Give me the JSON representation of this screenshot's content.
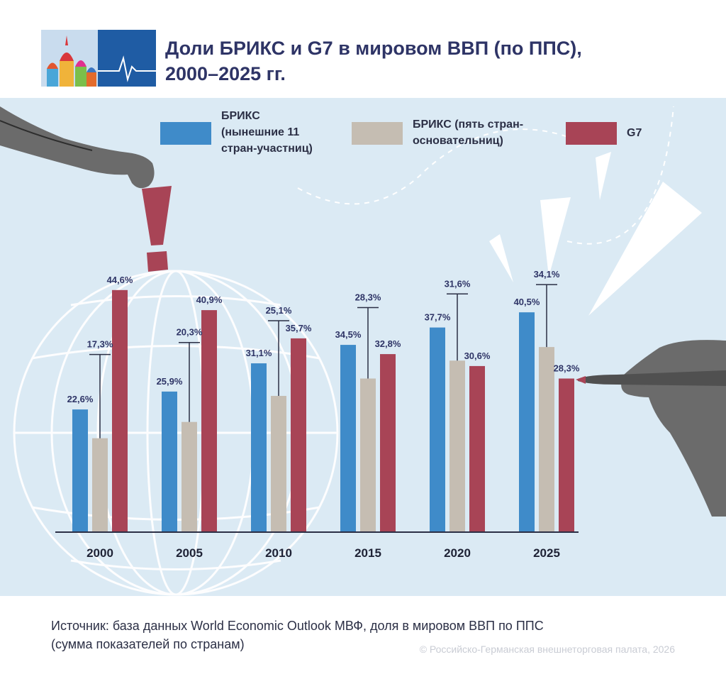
{
  "header": {
    "title_line1": "Доли БРИКС и G7 в мировом ВВП (по ППС),",
    "title_line2": "2000–2025 гг.",
    "logo_icon": "onion-domes-pulse-logo-icon"
  },
  "chart_data": {
    "type": "bar",
    "title": "Доли БРИКС и G7 в мировом ВВП (по ППС), 2000–2025 гг.",
    "categories": [
      "2000",
      "2005",
      "2010",
      "2015",
      "2020",
      "2025"
    ],
    "unit": "%",
    "ylim": [
      0,
      50
    ],
    "grid": false,
    "legend_position": "top",
    "series": [
      {
        "name": "БРИКС (нынешние 11 стран-участниц)",
        "color": "#3f8bc9",
        "values": [
          22.6,
          25.9,
          31.1,
          34.5,
          37.7,
          40.5
        ],
        "labels": [
          "22,6%",
          "25,9%",
          "31,1%",
          "34,5%",
          "37,7%",
          "40,5%"
        ]
      },
      {
        "name": "БРИКС (пять стран-основательниц)",
        "color": "#c5bdb2",
        "values": [
          17.3,
          20.3,
          25.1,
          28.3,
          31.6,
          34.1
        ],
        "labels": [
          "17,3%",
          "20,3%",
          "25,1%",
          "28,3%",
          "31,6%",
          "34,1%"
        ]
      },
      {
        "name": "G7",
        "color": "#a84456",
        "values": [
          44.6,
          40.9,
          35.7,
          32.8,
          30.6,
          28.3
        ],
        "labels": [
          "44,6%",
          "40,9%",
          "35,7%",
          "32,8%",
          "30,6%",
          "28,3%"
        ]
      }
    ]
  },
  "legend": {
    "items": [
      {
        "lines": [
          "БРИКС",
          "(нынешние 11",
          "стран-участниц)"
        ],
        "color": "#3f8bc9"
      },
      {
        "lines": [
          "БРИКС (пять стран-",
          "основательниц)"
        ],
        "color": "#c5bdb2"
      },
      {
        "lines": [
          "G7"
        ],
        "color": "#a84456"
      }
    ]
  },
  "footer": {
    "source_line1": "Источник: база данных World Economic Outlook МВФ, доля в мировом ВВП по ППС",
    "source_line2": "(сумма показателей по странам)",
    "copyright": "© Российско-Германская внешнеторговая палата, 2026"
  },
  "colors": {
    "background": "#dbeaf4",
    "title": "#2e3466",
    "label": "#2e3466"
  }
}
